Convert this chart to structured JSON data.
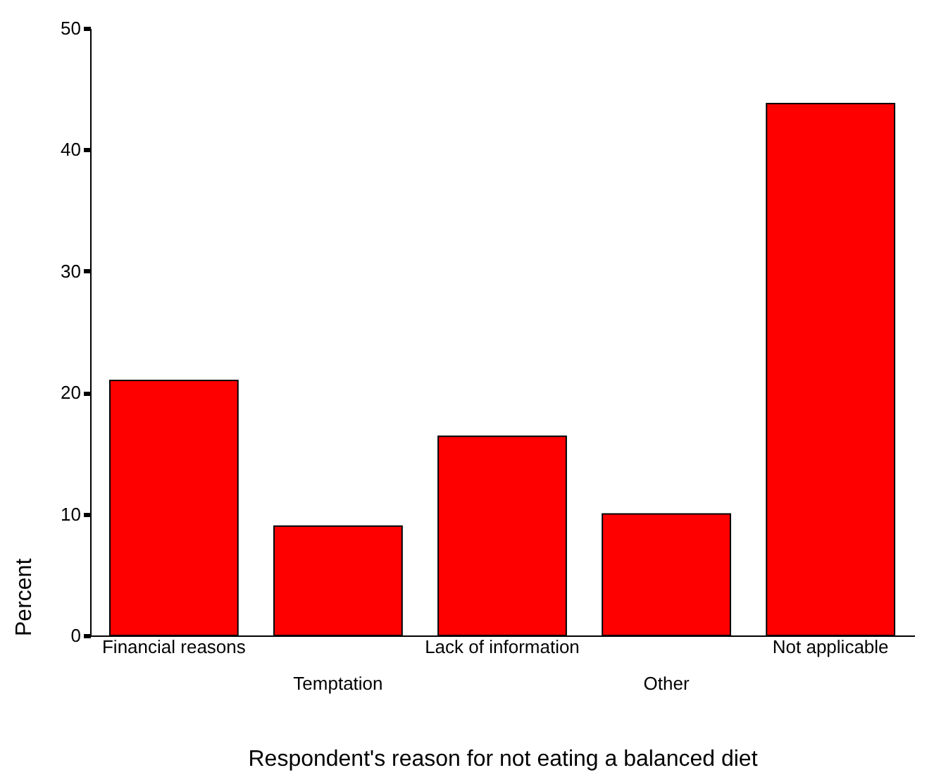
{
  "chart_data": {
    "type": "bar",
    "xlabel": "Respondent's reason for not eating a balanced diet",
    "ylabel": "Percent",
    "categories": [
      "Financial reasons",
      "Temptation",
      "Lack of information",
      "Other",
      "Not applicable"
    ],
    "values": [
      21.0,
      9.0,
      16.4,
      10.0,
      43.8
    ],
    "color": "#ff0000",
    "ylim": [
      0,
      50
    ],
    "yticks": [
      0,
      10,
      20,
      30,
      40,
      50
    ],
    "grid": false
  }
}
